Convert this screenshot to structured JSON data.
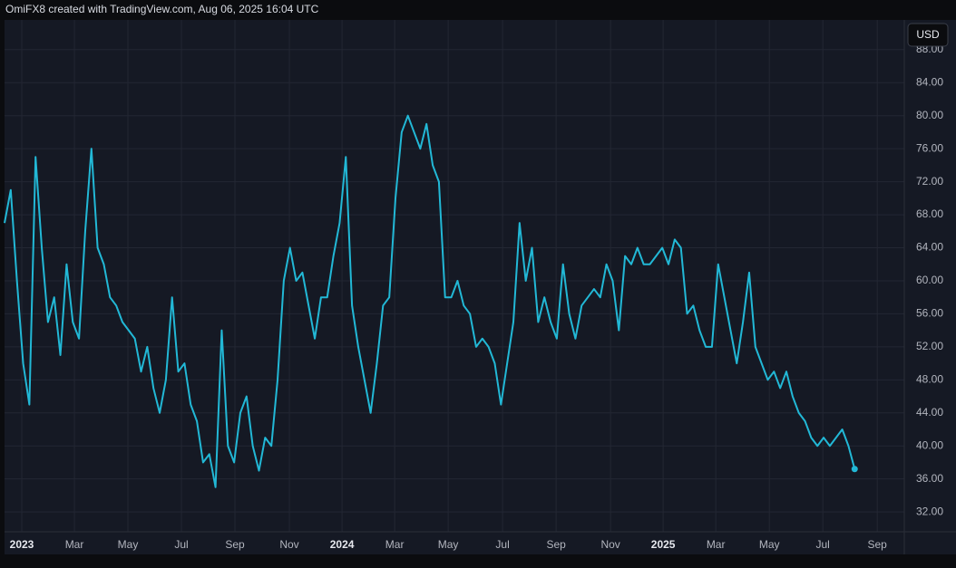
{
  "chart_data": {
    "type": "line",
    "title": "OmiFX8 created with TradingView.com, Aug 06, 2025 16:04 UTC",
    "y_label": "USD",
    "grid": true,
    "xlim": [
      0,
      145
    ],
    "ylim": [
      29.6,
      91.6
    ],
    "yticks": [
      {
        "value": 32,
        "label": "32.00"
      },
      {
        "value": 36,
        "label": "36.00"
      },
      {
        "value": 40,
        "label": "40.00"
      },
      {
        "value": 44,
        "label": "44.00"
      },
      {
        "value": 48,
        "label": "48.00"
      },
      {
        "value": 52,
        "label": "52.00"
      },
      {
        "value": 56,
        "label": "56.00"
      },
      {
        "value": 60,
        "label": "60.00"
      },
      {
        "value": 64,
        "label": "64.00"
      },
      {
        "value": 68,
        "label": "68.00"
      },
      {
        "value": 72,
        "label": "72.00"
      },
      {
        "value": 76,
        "label": "76.00"
      },
      {
        "value": 80,
        "label": "80.00"
      },
      {
        "value": 84,
        "label": "84.00"
      },
      {
        "value": 88,
        "label": "88.00"
      }
    ],
    "xticks": [
      {
        "value": 2.78,
        "label": "2023"
      },
      {
        "value": 11.26,
        "label": "Mar"
      },
      {
        "value": 19.88,
        "label": "May"
      },
      {
        "value": 28.51,
        "label": "Jul"
      },
      {
        "value": 37.13,
        "label": "Sep"
      },
      {
        "value": 45.9,
        "label": "Nov"
      },
      {
        "value": 54.39,
        "label": "2024"
      },
      {
        "value": 62.87,
        "label": "Mar"
      },
      {
        "value": 71.49,
        "label": "May"
      },
      {
        "value": 80.26,
        "label": "Jul"
      },
      {
        "value": 88.89,
        "label": "Sep"
      },
      {
        "value": 97.66,
        "label": "Nov"
      },
      {
        "value": 106.14,
        "label": "2025"
      },
      {
        "value": 114.62,
        "label": "Mar"
      },
      {
        "value": 123.25,
        "label": "May"
      },
      {
        "value": 131.87,
        "label": "Jul"
      },
      {
        "value": 140.64,
        "label": "Sep"
      }
    ],
    "series": [
      {
        "color": "#22b8d6",
        "values": [
          67,
          71,
          60,
          50,
          45,
          75,
          64,
          55,
          58,
          51,
          62,
          55,
          53,
          66,
          76,
          64,
          62,
          58,
          57,
          55,
          54,
          53,
          49,
          52,
          47,
          44,
          48,
          58,
          49,
          50,
          45,
          43,
          38,
          39,
          35,
          54,
          40,
          38,
          44,
          46,
          40,
          37,
          41,
          40,
          48,
          60,
          64,
          60,
          61,
          57,
          53,
          58,
          58,
          63,
          67,
          75,
          57,
          52,
          48,
          44,
          50,
          57,
          58,
          70,
          78,
          80,
          78,
          76,
          79,
          74,
          72,
          58,
          58,
          60,
          57,
          56,
          52,
          53,
          52,
          50,
          45,
          50,
          55,
          67,
          60,
          64,
          55,
          58,
          55,
          53,
          62,
          56,
          53,
          57,
          58,
          59,
          58,
          62,
          60,
          54,
          63,
          62,
          64,
          62,
          62,
          63,
          64,
          62,
          65,
          64,
          56,
          57,
          54,
          52,
          52,
          62,
          58,
          54,
          50,
          55,
          61,
          52,
          50,
          48,
          49,
          47,
          49,
          46,
          44,
          43,
          41,
          40,
          41,
          40,
          41,
          42,
          40,
          37.2
        ]
      }
    ]
  }
}
